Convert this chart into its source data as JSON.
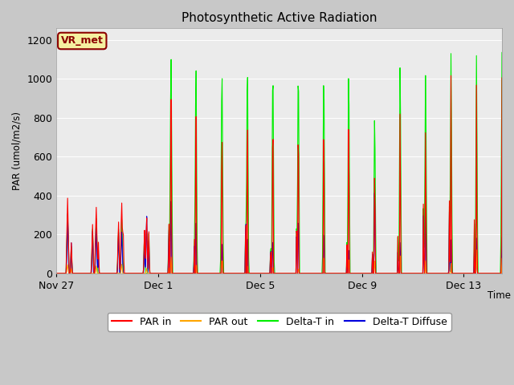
{
  "title": "Photosynthetic Active Radiation",
  "ylabel": "PAR (umol/m2/s)",
  "xlabel": "Time",
  "ylim": [
    0,
    1260
  ],
  "bg_color": "#ebebeb",
  "fig_color": "#c8c8c8",
  "legend_label_box": "VR_met",
  "legend_box_facecolor": "#f5f0a0",
  "legend_box_edgecolor": "#8b0000",
  "yticks": [
    0,
    200,
    400,
    600,
    800,
    1000,
    1200
  ],
  "xtick_labels": [
    "Nov 27",
    "Dec 1",
    "Dec 5",
    "Dec 9",
    "Dec 13"
  ],
  "xtick_positions": [
    0,
    4,
    8,
    12,
    16
  ],
  "series_colors": {
    "par_in": "#ff0000",
    "par_out": "#ffa500",
    "delta_t_in": "#00ee00",
    "delta_t_diffuse": "#0000dd"
  },
  "series_labels": [
    "PAR in",
    "PAR out",
    "Delta-T in",
    "Delta-T Diffuse"
  ],
  "xlim": [
    0,
    17.5
  ],
  "n_days": 18
}
